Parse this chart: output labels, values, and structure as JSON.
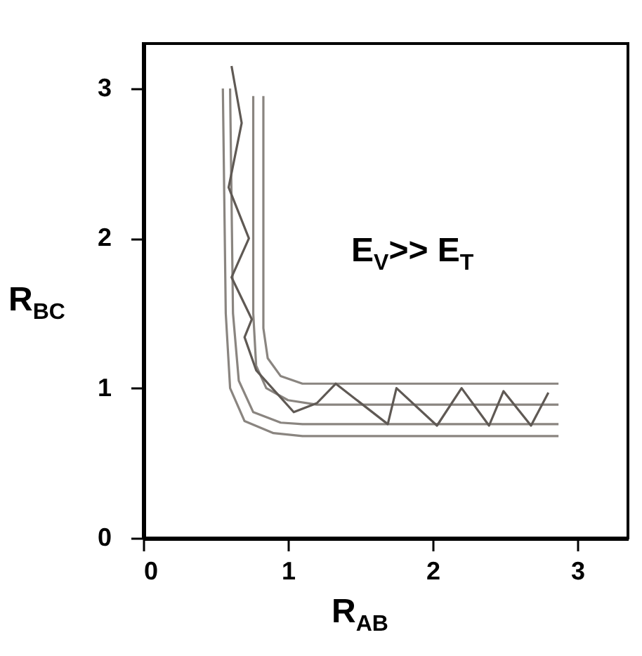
{
  "chart_data": {
    "type": "line",
    "xlabel": "R$_{AB}$",
    "ylabel": "R$_{BC}$",
    "annotations": [
      "E$_{V}$>> E$_{T}$"
    ],
    "xlim": [
      0,
      3.35
    ],
    "ylim": [
      0,
      3.3
    ],
    "xticks": [
      0,
      1,
      2,
      3
    ],
    "yticks": [
      0,
      1,
      2,
      3
    ],
    "grid": false,
    "legend": false,
    "marker": "none",
    "line_style": "solid",
    "series": [
      {
        "color": "#8a8580",
        "x": [
          0.55,
          0.57,
          0.6,
          0.7,
          0.9,
          1.1,
          2.87
        ],
        "values": [
          3.0,
          1.5,
          1.0,
          0.78,
          0.7,
          0.68,
          0.68
        ]
      },
      {
        "color": "#8a8580",
        "x": [
          0.6,
          0.62,
          0.66,
          0.76,
          0.95,
          1.1,
          2.87
        ],
        "values": [
          3.0,
          1.5,
          1.05,
          0.84,
          0.77,
          0.76,
          0.76
        ]
      },
      {
        "color": "#8a8580",
        "x": [
          0.76,
          0.76,
          0.78,
          0.85,
          1.0,
          1.2,
          2.87
        ],
        "values": [
          2.95,
          1.5,
          1.15,
          1.0,
          0.92,
          0.89,
          0.89
        ]
      },
      {
        "color": "#8a8580",
        "x": [
          0.83,
          0.83,
          0.86,
          0.95,
          1.1,
          2.87
        ],
        "values": [
          2.95,
          1.4,
          1.2,
          1.08,
          1.03,
          1.03
        ]
      },
      {
        "color": "#5f5954",
        "x": [
          0.61,
          0.68,
          0.59,
          0.73,
          0.61,
          0.75,
          0.7,
          0.78,
          1.04,
          1.2,
          1.33,
          1.69,
          1.75,
          2.03,
          2.2,
          2.39,
          2.49,
          2.68,
          2.8
        ],
        "values": [
          3.15,
          2.77,
          2.34,
          2.0,
          1.74,
          1.46,
          1.34,
          1.12,
          0.84,
          0.9,
          1.03,
          0.76,
          1.0,
          0.75,
          1.0,
          0.75,
          0.98,
          0.75,
          0.97
        ]
      }
    ]
  }
}
